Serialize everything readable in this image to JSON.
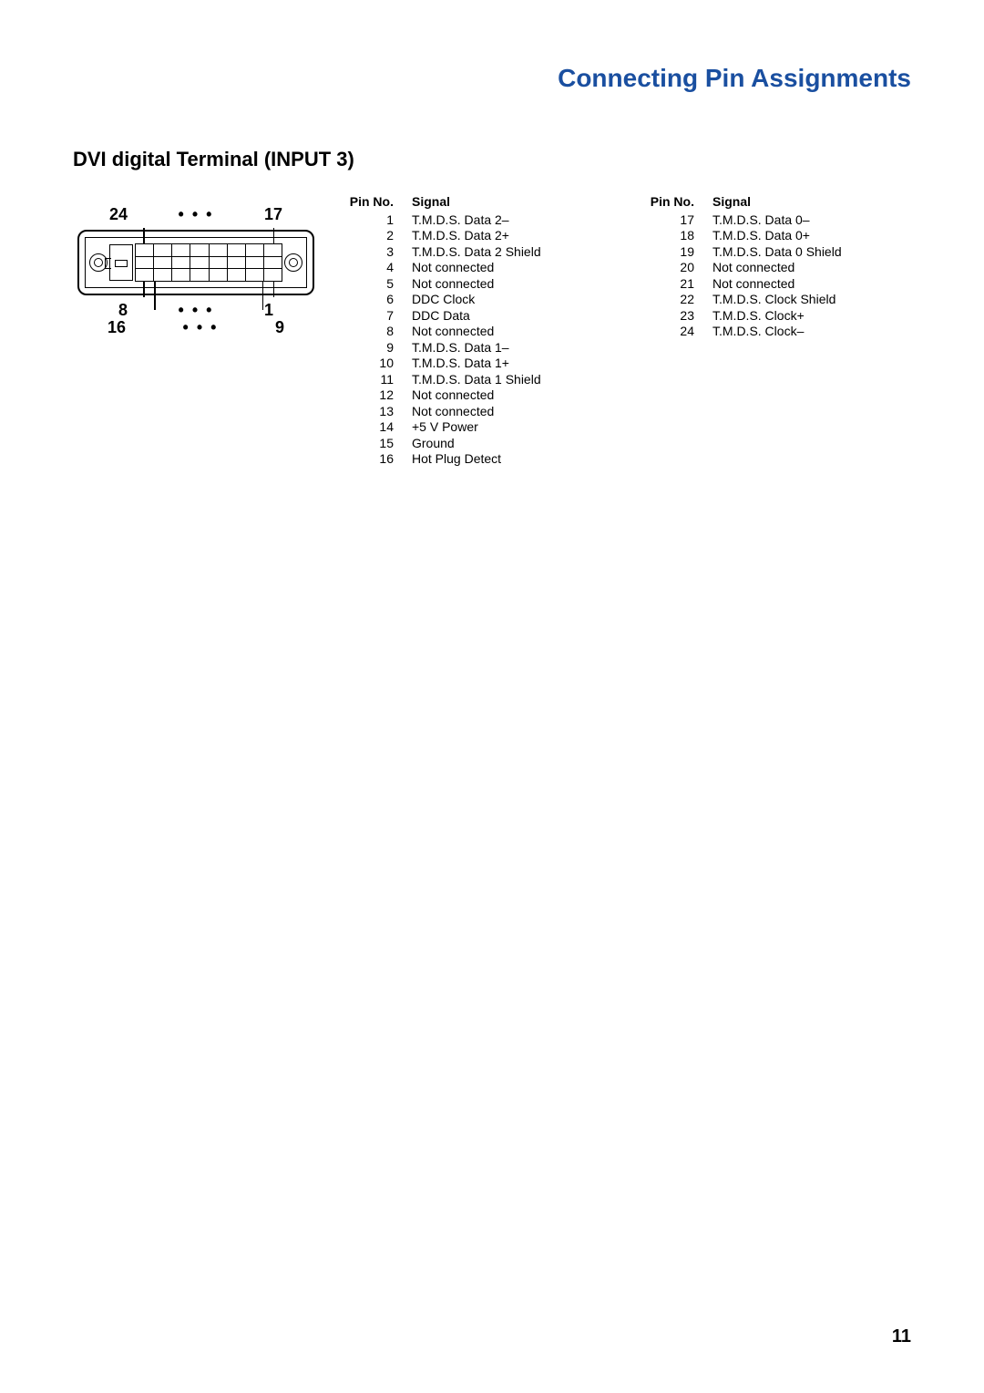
{
  "colors": {
    "title": "#1a4fa0",
    "text": "#000000",
    "background": "#ffffff",
    "line": "#000000"
  },
  "typography": {
    "title_fontsize_pt": 21,
    "section_fontsize_pt": 16,
    "table_fontsize_pt": 10,
    "label_fontsize_pt": 13,
    "font_family": "Arial"
  },
  "page": {
    "title": "Connecting Pin Assignments",
    "number": "11"
  },
  "section": {
    "title": "DVI digital Terminal (INPUT 3)"
  },
  "diagram": {
    "type": "connector-pinout",
    "connector": "DVI-D 24-pin",
    "rows": 3,
    "cols": 8,
    "top_left_label": "24",
    "top_right_label": "17",
    "mid_left_label": "8",
    "mid_right_label": "1",
    "bottom_left_label": "16",
    "bottom_right_label": "9",
    "dots": "• • •"
  },
  "pin_table": {
    "headers": {
      "pin": "Pin No.",
      "signal": "Signal"
    },
    "col1": [
      {
        "pin": "1",
        "signal": "T.M.D.S. Data 2–"
      },
      {
        "pin": "2",
        "signal": "T.M.D.S. Data 2+"
      },
      {
        "pin": "3",
        "signal": "T.M.D.S. Data 2 Shield"
      },
      {
        "pin": "4",
        "signal": "Not connected"
      },
      {
        "pin": "5",
        "signal": "Not connected"
      },
      {
        "pin": "6",
        "signal": "DDC Clock"
      },
      {
        "pin": "7",
        "signal": "DDC Data"
      },
      {
        "pin": "8",
        "signal": "Not connected"
      },
      {
        "pin": "9",
        "signal": "T.M.D.S. Data 1–"
      },
      {
        "pin": "10",
        "signal": "T.M.D.S. Data 1+"
      },
      {
        "pin": "11",
        "signal": "T.M.D.S. Data 1 Shield"
      },
      {
        "pin": "12",
        "signal": "Not connected"
      },
      {
        "pin": "13",
        "signal": "Not connected"
      },
      {
        "pin": "14",
        "signal": "+5 V Power"
      },
      {
        "pin": "15",
        "signal": "Ground"
      },
      {
        "pin": "16",
        "signal": "Hot Plug Detect"
      }
    ],
    "col2": [
      {
        "pin": "17",
        "signal": "T.M.D.S. Data 0–"
      },
      {
        "pin": "18",
        "signal": "T.M.D.S. Data 0+"
      },
      {
        "pin": "19",
        "signal": "T.M.D.S. Data 0 Shield"
      },
      {
        "pin": "20",
        "signal": "Not connected"
      },
      {
        "pin": "21",
        "signal": "Not connected"
      },
      {
        "pin": "22",
        "signal": "T.M.D.S. Clock Shield"
      },
      {
        "pin": "23",
        "signal": "T.M.D.S. Clock+"
      },
      {
        "pin": "24",
        "signal": "T.M.D.S. Clock–"
      }
    ]
  }
}
